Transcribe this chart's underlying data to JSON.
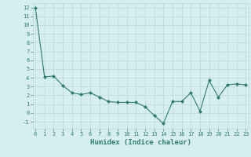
{
  "x": [
    0,
    1,
    2,
    3,
    4,
    5,
    6,
    7,
    8,
    9,
    10,
    11,
    12,
    13,
    14,
    15,
    16,
    17,
    18,
    19,
    20,
    21,
    22,
    23
  ],
  "y": [
    12,
    4.1,
    4.2,
    3.1,
    2.3,
    2.1,
    2.3,
    1.8,
    1.3,
    1.2,
    1.2,
    1.2,
    0.7,
    -0.3,
    -1.2,
    1.3,
    1.3,
    2.3,
    0.2,
    3.7,
    1.8,
    3.2,
    3.3,
    3.2
  ],
  "xlabel": "Humidex (Indice chaleur)",
  "ylim": [
    -1.8,
    12.5
  ],
  "xlim": [
    -0.3,
    23.3
  ],
  "line_color": "#2e7d6e",
  "marker": "D",
  "marker_size": 2,
  "bg_color": "#d6eeee",
  "grid_color": "#b8d8d8",
  "tick_color": "#2e7d6e",
  "yticks": [
    -1,
    0,
    1,
    2,
    3,
    4,
    5,
    6,
    7,
    8,
    9,
    10,
    11,
    12
  ],
  "xticks": [
    0,
    1,
    2,
    3,
    4,
    5,
    6,
    7,
    8,
    9,
    10,
    11,
    12,
    13,
    14,
    15,
    16,
    17,
    18,
    19,
    20,
    21,
    22,
    23
  ],
  "tick_fontsize": 5.0,
  "xlabel_fontsize": 6.5
}
